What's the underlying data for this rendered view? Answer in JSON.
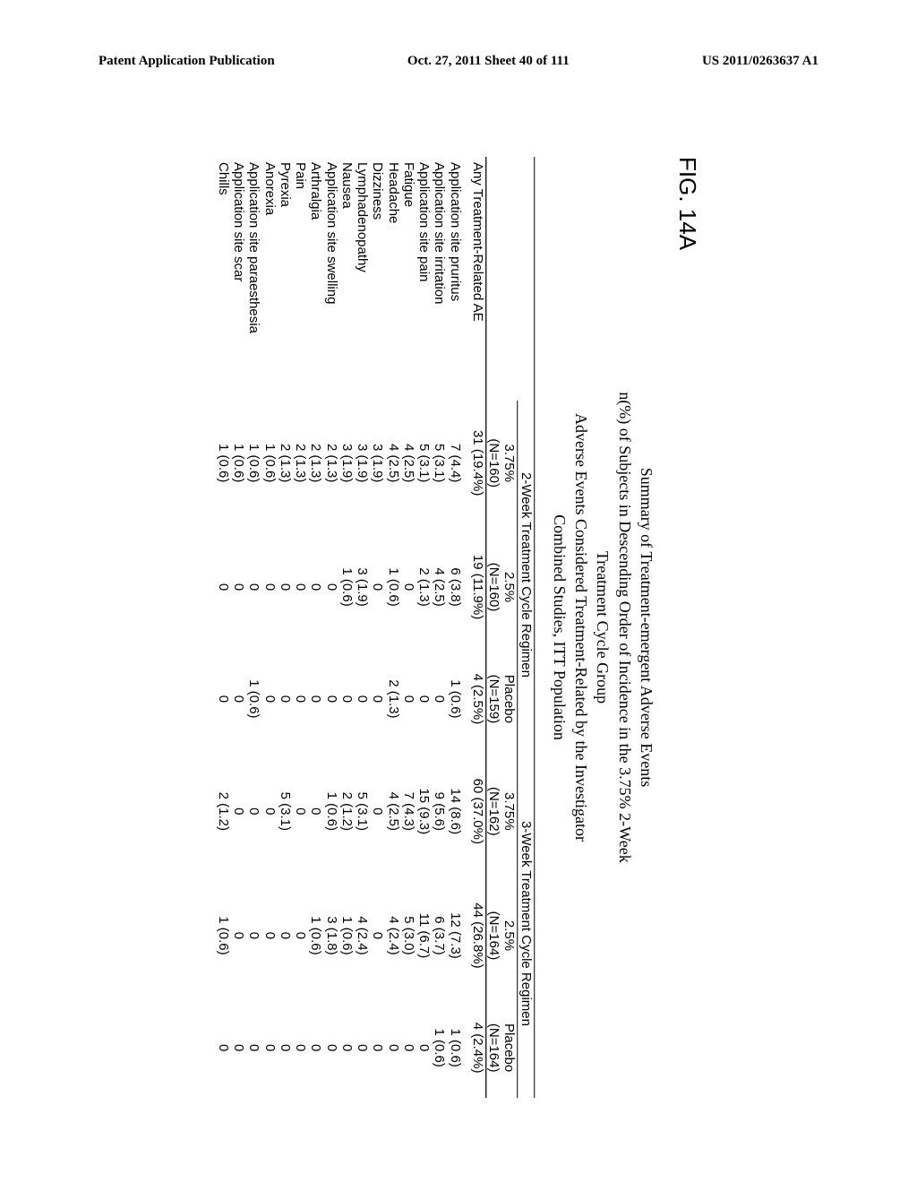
{
  "header": {
    "left": "Patent Application Publication",
    "center": "Oct. 27, 2011  Sheet 40 of 111",
    "right": "US 2011/0263637 A1"
  },
  "figure_label": "FIG. 14A",
  "title": {
    "line1": "Summary of Treatment-emergent Adverse Events",
    "line2": "n(%) of Subjects in Descending Order of Incidence in the 3.75% 2-Week",
    "line3": "Treatment Cycle Group",
    "line4": "Adverse Events Considered Treatment-Related by the Investigator",
    "line5": "Combined Studies, ITT Population"
  },
  "table": {
    "group1": "2-Week Treatment Cycle Regimen",
    "group2": "3-Week Treatment Cycle Regimen",
    "cols": {
      "c1": {
        "label": "3.75%",
        "n": "(N=160)"
      },
      "c2": {
        "label": "2.5%",
        "n": "(N=160)"
      },
      "c3": {
        "label": "Placebo",
        "n": "(N=159)"
      },
      "c4": {
        "label": "3.75%",
        "n": "(N=162)"
      },
      "c5": {
        "label": "2.5%",
        "n": "(N=164)"
      },
      "c6": {
        "label": "Placebo",
        "n": "(N=164)"
      }
    },
    "rows": [
      {
        "label": "Any Treatment-Related AE",
        "v": [
          "31 (19.4%)",
          "19 (11.9%)",
          "4 (2.5%)",
          "60 (37.0%)",
          "44 (26.8%)",
          "4 (2.4%)"
        ],
        "first": true
      },
      {
        "label": "Application site pruritus",
        "v": [
          "7 (4.4)",
          "6 (3.8)",
          "1 (0.6)",
          "14 (8.6)",
          "12 (7.3)",
          "1 (0.6)"
        ],
        "gap": true
      },
      {
        "label": "Application site irritation",
        "v": [
          "5 (3.1)",
          "4 (2.5)",
          "0",
          "9 (5.6)",
          "6 (3.7)",
          "1 (0.6)"
        ]
      },
      {
        "label": "Application site pain",
        "v": [
          "5 (3.1)",
          "2 (1.3)",
          "0",
          "15 (9.3)",
          "11 (6.7)",
          "0"
        ]
      },
      {
        "label": "Fatigue",
        "v": [
          "4 (2.5)",
          "0",
          "0",
          "7 (4.3)",
          "5 (3.0)",
          "0"
        ]
      },
      {
        "label": "Headache",
        "v": [
          "4 (2.5)",
          "1 (0.6)",
          "2 (1.3)",
          "4 (2.5)",
          "4 (2.4)",
          "0"
        ]
      },
      {
        "label": "Dizziness",
        "v": [
          "3 (1.9)",
          "0",
          "0",
          "0",
          "0",
          "0"
        ]
      },
      {
        "label": "Lymphadenopathy",
        "v": [
          "3 (1.9)",
          "3 (1.9)",
          "0",
          "5 (3.1)",
          "4 (2.4)",
          "0"
        ]
      },
      {
        "label": "Nausea",
        "v": [
          "3 (1.9)",
          "1 (0.6)",
          "0",
          "2 (1.2)",
          "1 (0.6)",
          "0"
        ]
      },
      {
        "label": "Application site swelling",
        "v": [
          "2 (1.3)",
          "0",
          "0",
          "1 (0.6)",
          "3 (1.8)",
          "0"
        ]
      },
      {
        "label": "Arthralgia",
        "v": [
          "2 (1.3)",
          "0",
          "0",
          "0",
          "1 (0.6)",
          "0"
        ]
      },
      {
        "label": "Pain",
        "v": [
          "2 (1.3)",
          "0",
          "0",
          "0",
          "0",
          "0"
        ]
      },
      {
        "label": "Pyrexia",
        "v": [
          "2 (1.3)",
          "0",
          "0",
          "5 (3.1)",
          "0",
          "0"
        ]
      },
      {
        "label": "Anorexia",
        "v": [
          "1 (0.6)",
          "0",
          "0",
          "0",
          "0",
          "0"
        ]
      },
      {
        "label": "Application site paraesthesia",
        "v": [
          "1 (0.6)",
          "0",
          "1 (0.6)",
          "0",
          "0",
          "0"
        ]
      },
      {
        "label": "Application site scar",
        "v": [
          "1 (0.6)",
          "0",
          "0",
          "0",
          "0",
          "0"
        ]
      },
      {
        "label": "Chills",
        "v": [
          "1 (0.6)",
          "0",
          "0",
          "2 (1.2)",
          "1 (0.6)",
          "0"
        ]
      }
    ]
  }
}
